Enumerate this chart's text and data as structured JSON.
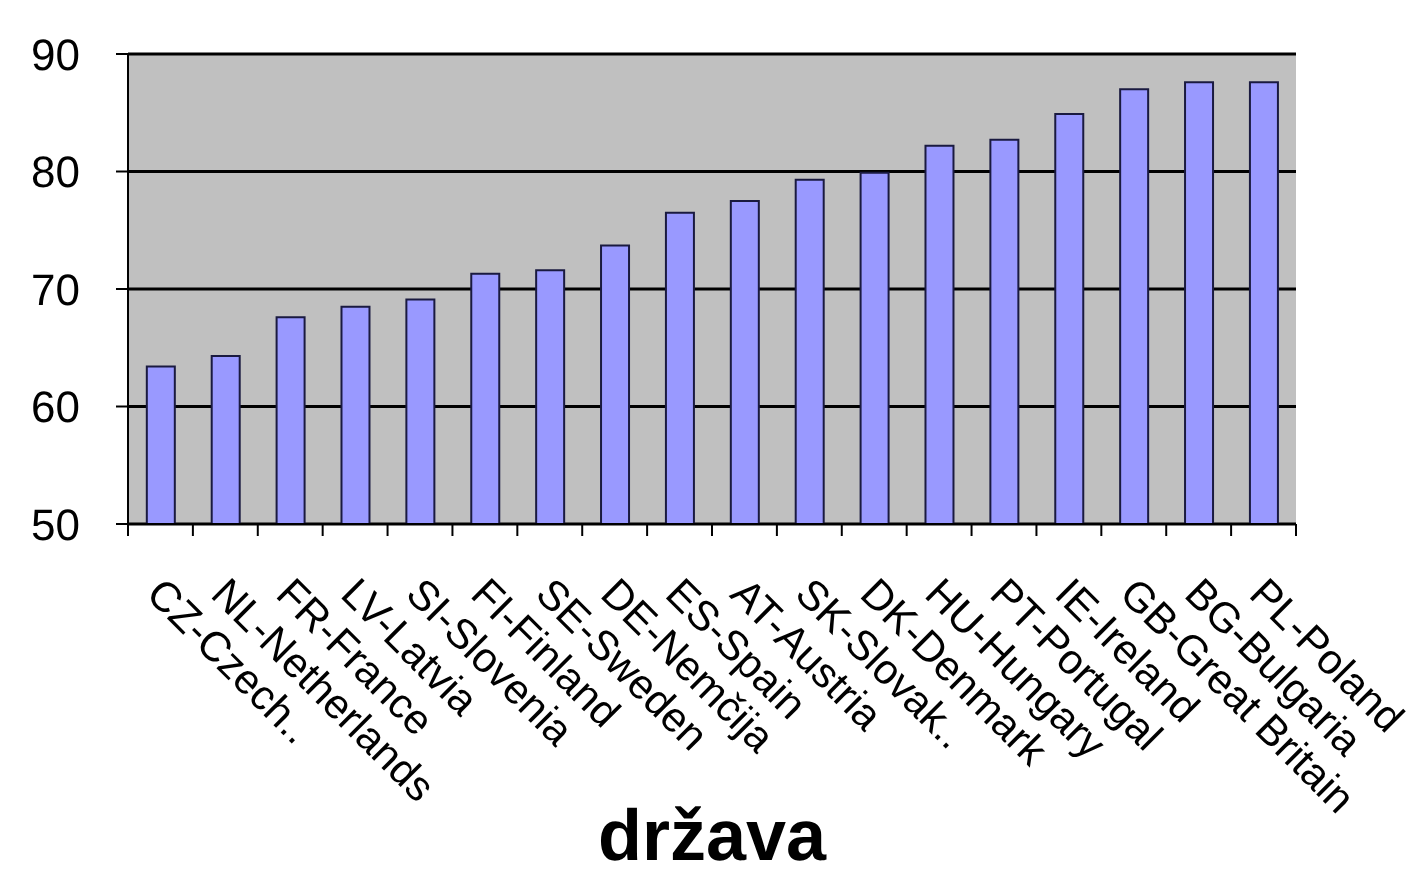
{
  "chart_data": {
    "type": "bar",
    "xlabel": "država",
    "categories": [
      "CZ-Czech..",
      "NL-Netherlands",
      "FR-France",
      "LV-Latvia",
      "SI-Slovenia",
      "FI-Finland",
      "SE-Sweden",
      "DE-Nemčija",
      "ES-Spain",
      "AT-Austria",
      "SK-Slovak..",
      "DK-Denmark",
      "HU-Hungary",
      "PT-Portugal",
      "IE-Ireland",
      "GB-Great Britain",
      "BG-Bulgaria",
      "PL-Poland"
    ],
    "values": [
      63.4,
      64.3,
      67.6,
      68.5,
      69.1,
      71.3,
      71.6,
      73.7,
      76.5,
      77.5,
      79.3,
      79.9,
      82.2,
      82.7,
      84.9,
      87.0,
      87.6,
      87.6
    ],
    "color": "#9999ff",
    "ylim": [
      50,
      90
    ],
    "yticks": [
      50,
      60,
      70,
      80,
      90
    ],
    "grid": "y"
  }
}
